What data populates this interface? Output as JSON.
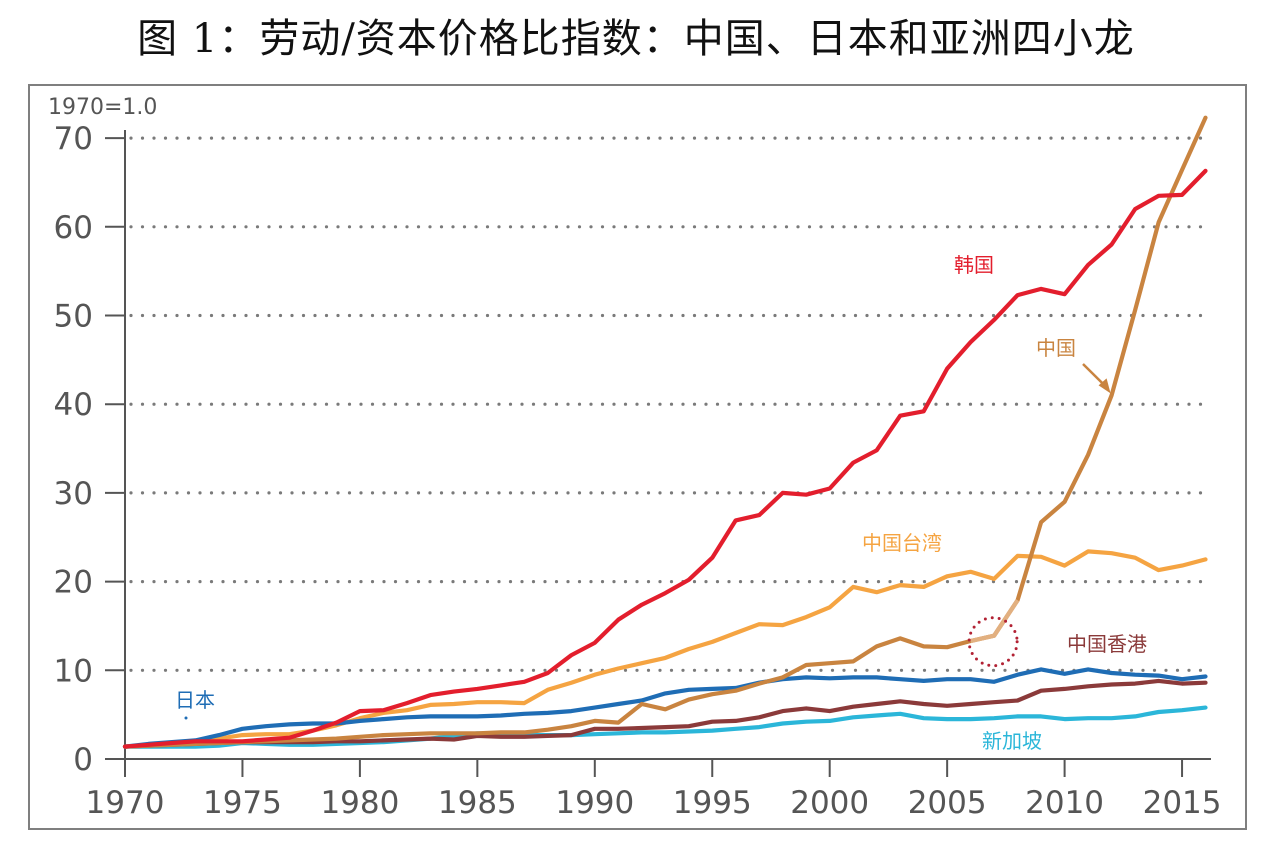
{
  "title": "图 1：劳动/资本价格比指数：中国、日本和亚洲四小龙",
  "chart_data": {
    "type": "line",
    "title": "图 1：劳动/资本价格比指数：中国、日本和亚洲四小龙",
    "unit_note": "1970=1.0",
    "xlabel": "",
    "ylabel": "",
    "xlim": [
      1970,
      2016
    ],
    "ylim": [
      0,
      70
    ],
    "x_ticks": [
      1970,
      1975,
      1980,
      1985,
      1990,
      1995,
      2000,
      2005,
      2010,
      2015
    ],
    "y_ticks": [
      0,
      10,
      20,
      30,
      40,
      50,
      60,
      70
    ],
    "grid": "horizontal dotted",
    "x": [
      1970,
      1971,
      1972,
      1973,
      1974,
      1975,
      1976,
      1977,
      1978,
      1979,
      1980,
      1981,
      1982,
      1983,
      1984,
      1985,
      1986,
      1987,
      1988,
      1989,
      1990,
      1991,
      1992,
      1993,
      1994,
      1995,
      1996,
      1997,
      1998,
      1999,
      2000,
      2001,
      2002,
      2003,
      2004,
      2005,
      2006,
      2007,
      2008,
      2009,
      2010,
      2011,
      2012,
      2013,
      2014,
      2015,
      2016
    ],
    "series": [
      {
        "name": "韩国",
        "color": "#e31e2d",
        "values": [
          1.4,
          1.6,
          1.8,
          2.0,
          2.0,
          2.0,
          2.2,
          2.4,
          3.2,
          4.1,
          5.4,
          5.5,
          6.3,
          7.2,
          7.6,
          7.9,
          8.3,
          8.7,
          9.7,
          11.7,
          13.1,
          15.7,
          17.4,
          18.7,
          20.2,
          22.7,
          26.9,
          27.5,
          30.0,
          29.8,
          30.5,
          33.4,
          34.8,
          38.7,
          39.2,
          44.0,
          47.0,
          49.5,
          52.3,
          53.0,
          52.4,
          55.7,
          58.0,
          62.0,
          63.5,
          63.6,
          66.3
        ]
      },
      {
        "name": "中国",
        "color": "#c98440",
        "values": [
          1.4,
          1.5,
          1.6,
          1.7,
          1.8,
          1.9,
          2.0,
          2.1,
          2.2,
          2.3,
          2.5,
          2.7,
          2.8,
          2.9,
          2.9,
          2.9,
          3.0,
          3.0,
          3.3,
          3.7,
          4.3,
          4.1,
          6.2,
          5.6,
          6.7,
          7.3,
          7.7,
          8.5,
          9.2,
          10.6,
          10.8,
          11.0,
          12.7,
          13.6,
          12.7,
          12.6,
          13.3,
          13.9,
          17.9,
          26.7,
          29.0,
          34.3,
          41.0,
          50.6,
          60.5,
          66.4,
          72.3
        ]
      },
      {
        "name": "中国台湾",
        "color": "#f5a442",
        "values": [
          1.4,
          1.6,
          1.8,
          2.0,
          2.3,
          2.7,
          2.8,
          2.8,
          3.2,
          3.8,
          4.6,
          5.2,
          5.5,
          6.1,
          6.2,
          6.4,
          6.4,
          6.3,
          7.8,
          8.6,
          9.5,
          10.2,
          10.8,
          11.4,
          12.4,
          13.2,
          14.2,
          15.2,
          15.1,
          16.0,
          17.1,
          19.4,
          18.8,
          19.6,
          19.4,
          20.6,
          21.1,
          20.3,
          22.9,
          22.8,
          21.8,
          23.4,
          23.2,
          22.7,
          21.3,
          21.8,
          22.5
        ]
      },
      {
        "name": "中国香港",
        "color": "#8b3a3a",
        "values": [
          1.4,
          1.5,
          1.6,
          1.7,
          1.8,
          1.9,
          1.9,
          1.9,
          1.9,
          2.0,
          2.0,
          2.1,
          2.2,
          2.3,
          2.2,
          2.6,
          2.5,
          2.5,
          2.6,
          2.7,
          3.4,
          3.4,
          3.5,
          3.6,
          3.7,
          4.2,
          4.3,
          4.7,
          5.4,
          5.7,
          5.4,
          5.9,
          6.2,
          6.5,
          6.2,
          6.0,
          6.2,
          6.4,
          6.6,
          7.7,
          7.9,
          8.2,
          8.4,
          8.5,
          8.8,
          8.5,
          8.6
        ]
      },
      {
        "name": "日本",
        "color": "#1f6db5",
        "values": [
          1.4,
          1.7,
          1.9,
          2.1,
          2.7,
          3.4,
          3.7,
          3.9,
          4.0,
          4.0,
          4.3,
          4.5,
          4.7,
          4.8,
          4.8,
          4.8,
          4.9,
          5.1,
          5.2,
          5.4,
          5.8,
          6.2,
          6.6,
          7.4,
          7.8,
          7.9,
          8.0,
          8.6,
          9.0,
          9.2,
          9.1,
          9.2,
          9.2,
          9.0,
          8.8,
          9.0,
          9.0,
          8.7,
          9.5,
          10.1,
          9.6,
          10.1,
          9.7,
          9.5,
          9.4,
          9.0,
          9.3
        ]
      },
      {
        "name": "新加坡",
        "color": "#2bb6d9",
        "values": [
          1.4,
          1.4,
          1.4,
          1.4,
          1.5,
          1.8,
          1.7,
          1.6,
          1.6,
          1.7,
          1.8,
          1.9,
          2.1,
          2.3,
          2.6,
          2.9,
          2.8,
          2.7,
          2.7,
          2.7,
          2.8,
          2.9,
          3.0,
          3.0,
          3.1,
          3.2,
          3.4,
          3.6,
          4.0,
          4.2,
          4.3,
          4.7,
          4.9,
          5.1,
          4.6,
          4.5,
          4.5,
          4.6,
          4.8,
          4.8,
          4.5,
          4.6,
          4.6,
          4.8,
          5.3,
          5.5,
          5.8
        ]
      }
    ],
    "annotations": [
      {
        "type": "dotted-circle",
        "year": 2007,
        "value": 13.9,
        "color": "#b22234",
        "note": "highlight on 中国 series, lighter segment 2006–2008"
      },
      {
        "type": "arrow",
        "from_label": "中国",
        "to_year": 2012,
        "to_value": 41.0,
        "color": "#c98440"
      }
    ],
    "series_labels": [
      {
        "series": "韩国",
        "text": "韩国",
        "color": "#e31e2d"
      },
      {
        "series": "中国",
        "text": "中国",
        "color": "#c98440"
      },
      {
        "series": "中国台湾",
        "text": "中国台湾",
        "color": "#f5a442"
      },
      {
        "series": "中国香港",
        "text": "中国香港",
        "color": "#8b3a3a"
      },
      {
        "series": "日本",
        "text": "日本",
        "color": "#1f6db5"
      },
      {
        "series": "新加坡",
        "text": "新加坡",
        "color": "#2bb6d9"
      }
    ]
  }
}
